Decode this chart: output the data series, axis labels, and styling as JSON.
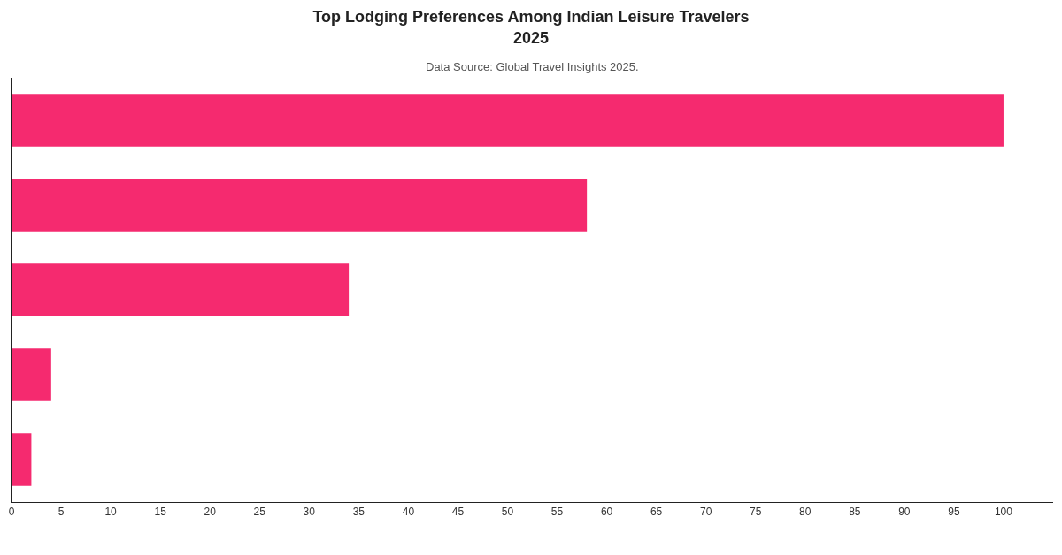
{
  "chart_data": {
    "type": "bar",
    "orientation": "horizontal",
    "title": "Top Lodging Preferences Among Indian Leisure Travelers\n2025",
    "subtitle": "Data Source: Global Travel Insights 2025.",
    "categories": [
      null,
      null,
      null,
      null,
      null
    ],
    "values": [
      100,
      58,
      34,
      4,
      2
    ],
    "color": "#f52a6f",
    "xlim": [
      0,
      105
    ],
    "xticks": [
      0,
      5,
      10,
      15,
      20,
      25,
      30,
      35,
      40,
      45,
      50,
      55,
      60,
      65,
      70,
      75,
      80,
      85,
      90,
      95,
      100
    ],
    "legend": false
  }
}
